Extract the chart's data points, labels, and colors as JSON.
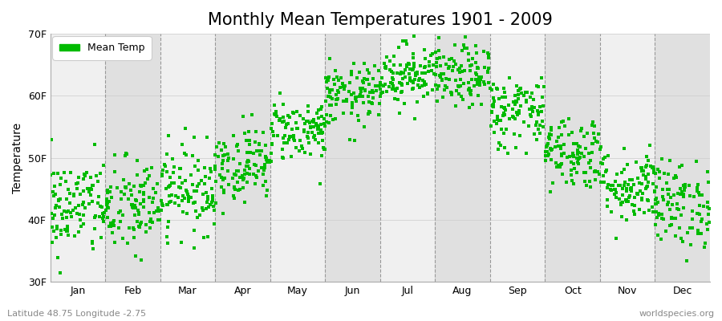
{
  "title": "Monthly Mean Temperatures 1901 - 2009",
  "ylabel": "Temperature",
  "xlabel_labels": [
    "Jan",
    "Feb",
    "Mar",
    "Apr",
    "May",
    "Jun",
    "Jul",
    "Aug",
    "Sep",
    "Oct",
    "Nov",
    "Dec"
  ],
  "ylim": [
    30,
    70
  ],
  "yticks": [
    30,
    40,
    50,
    60,
    70
  ],
  "ytick_labels": [
    "30F",
    "40F",
    "50F",
    "60F",
    "70F"
  ],
  "dot_color": "#00bb00",
  "dot_size": 6,
  "legend_label": "Mean Temp",
  "background_color": "#ffffff",
  "plot_bg_color": "#ffffff",
  "band_color_light": "#f0f0f0",
  "band_color_dark": "#e0e0e0",
  "footer_left": "Latitude 48.75 Longitude -2.75",
  "footer_right": "worldspecies.org",
  "title_fontsize": 15,
  "axis_fontsize": 10,
  "tick_fontsize": 9,
  "num_years": 109,
  "monthly_means_F": [
    42.0,
    42.0,
    45.0,
    49.0,
    54.5,
    60.0,
    63.5,
    63.0,
    57.5,
    51.0,
    45.5,
    42.5
  ],
  "monthly_stds_F": [
    4.0,
    4.0,
    3.5,
    3.0,
    2.5,
    2.5,
    2.5,
    2.5,
    3.0,
    3.0,
    3.0,
    3.5
  ],
  "seed": 42
}
